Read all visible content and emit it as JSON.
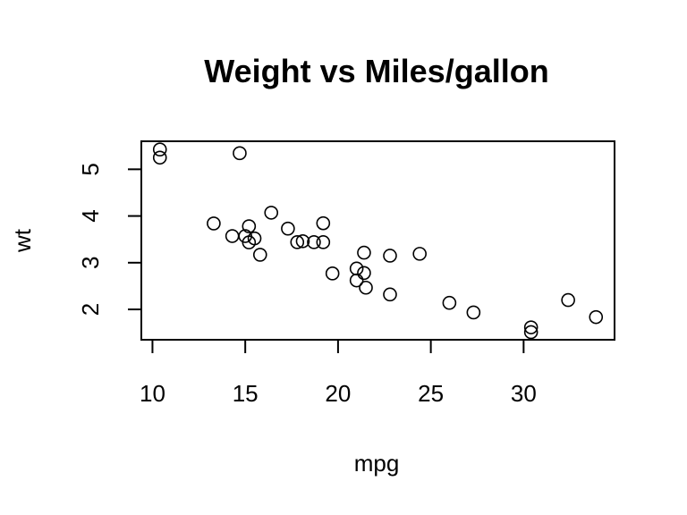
{
  "chart_data": {
    "type": "scatter",
    "title": "Weight vs Miles/gallon",
    "xlabel": "mpg",
    "ylabel": "wt",
    "xlim": [
      9.4,
      34.9
    ],
    "ylim": [
      1.35,
      5.6
    ],
    "xticks": [
      10,
      15,
      20,
      25,
      30
    ],
    "yticks": [
      2,
      3,
      4,
      5
    ],
    "grid": false,
    "points": [
      {
        "x": 21.0,
        "y": 2.62
      },
      {
        "x": 21.0,
        "y": 2.875
      },
      {
        "x": 22.8,
        "y": 2.32
      },
      {
        "x": 21.4,
        "y": 3.215
      },
      {
        "x": 18.7,
        "y": 3.44
      },
      {
        "x": 18.1,
        "y": 3.46
      },
      {
        "x": 14.3,
        "y": 3.57
      },
      {
        "x": 24.4,
        "y": 3.19
      },
      {
        "x": 22.8,
        "y": 3.15
      },
      {
        "x": 19.2,
        "y": 3.44
      },
      {
        "x": 17.8,
        "y": 3.44
      },
      {
        "x": 16.4,
        "y": 4.07
      },
      {
        "x": 17.3,
        "y": 3.73
      },
      {
        "x": 15.2,
        "y": 3.78
      },
      {
        "x": 10.4,
        "y": 5.25
      },
      {
        "x": 10.4,
        "y": 5.424
      },
      {
        "x": 14.7,
        "y": 5.345
      },
      {
        "x": 32.4,
        "y": 2.2
      },
      {
        "x": 30.4,
        "y": 1.615
      },
      {
        "x": 33.9,
        "y": 1.835
      },
      {
        "x": 21.5,
        "y": 2.465
      },
      {
        "x": 15.5,
        "y": 3.52
      },
      {
        "x": 15.2,
        "y": 3.435
      },
      {
        "x": 13.3,
        "y": 3.84
      },
      {
        "x": 19.2,
        "y": 3.845
      },
      {
        "x": 27.3,
        "y": 1.935
      },
      {
        "x": 26.0,
        "y": 2.14
      },
      {
        "x": 30.4,
        "y": 1.513
      },
      {
        "x": 15.8,
        "y": 3.17
      },
      {
        "x": 19.7,
        "y": 2.77
      },
      {
        "x": 15.0,
        "y": 3.57
      },
      {
        "x": 21.4,
        "y": 2.78
      }
    ]
  }
}
